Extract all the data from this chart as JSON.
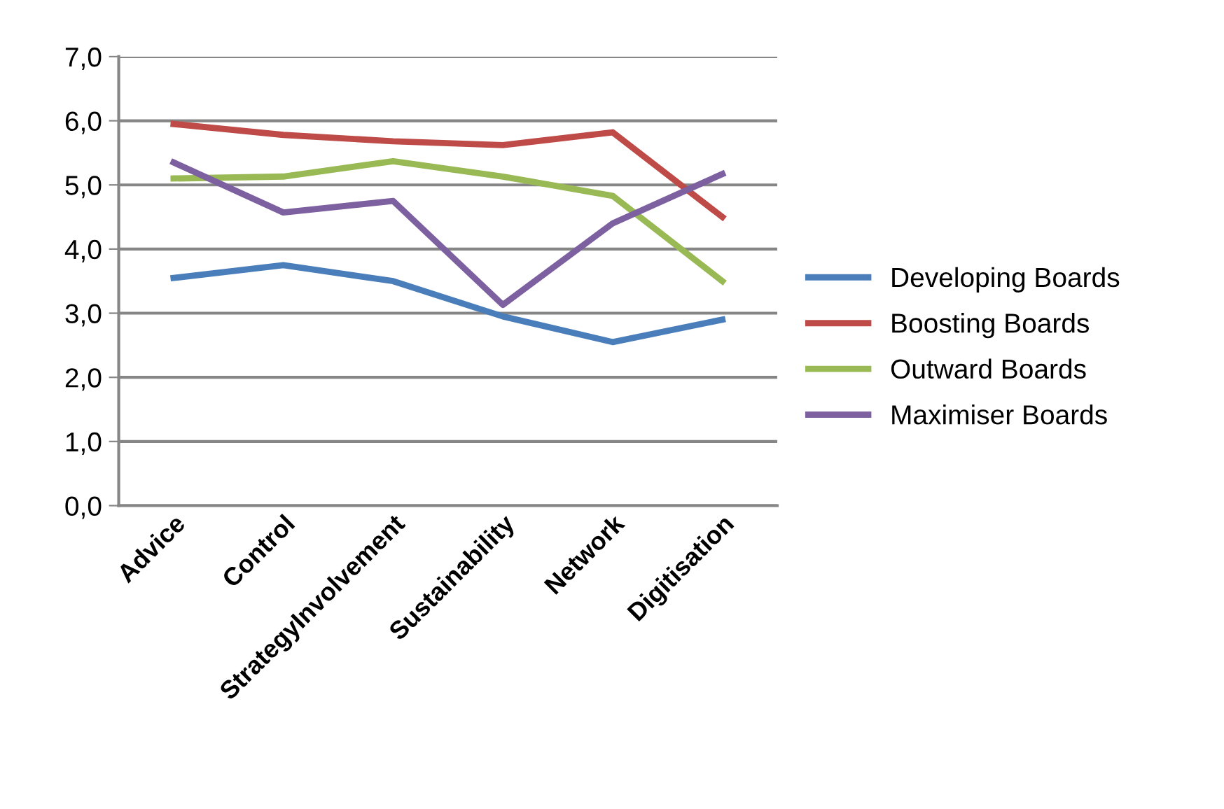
{
  "chart_data": {
    "type": "line",
    "categories": [
      "Advice",
      "Control",
      "StrategyInvolvement",
      "Sustainability",
      "Network",
      "Digitisation"
    ],
    "series": [
      {
        "name": "Developing Boards",
        "color": "#4a7ebb",
        "values": [
          3.55,
          3.75,
          3.5,
          2.95,
          2.55,
          2.9
        ]
      },
      {
        "name": "Boosting Boards",
        "color": "#be4b48",
        "values": [
          5.95,
          5.78,
          5.68,
          5.62,
          5.82,
          4.5
        ]
      },
      {
        "name": "Outward Boards",
        "color": "#98b954",
        "values": [
          5.1,
          5.13,
          5.37,
          5.13,
          4.83,
          3.5
        ]
      },
      {
        "name": "Maximiser Boards",
        "color": "#7d60a0",
        "values": [
          5.35,
          4.57,
          4.75,
          3.13,
          4.4,
          5.17
        ]
      }
    ],
    "ylim": [
      0,
      7
    ],
    "yticks": [
      {
        "value": 0,
        "label": "0,0"
      },
      {
        "value": 1,
        "label": "1,0"
      },
      {
        "value": 2,
        "label": "2,0"
      },
      {
        "value": 3,
        "label": "3,0"
      },
      {
        "value": 4,
        "label": "4,0"
      },
      {
        "value": 5,
        "label": "5,0"
      },
      {
        "value": 6,
        "label": "6,0"
      },
      {
        "value": 7,
        "label": "7,0"
      }
    ],
    "grid": "y",
    "legend": "right",
    "marker": "none",
    "line_style": "solid"
  }
}
